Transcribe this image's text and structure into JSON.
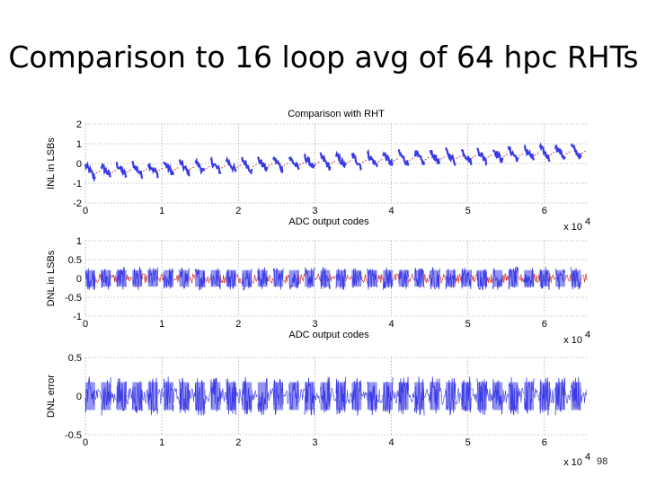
{
  "slide": {
    "title": "Comparison to 16 loop avg of 64 hpc RHTs",
    "page_number": "98"
  },
  "colors": {
    "signal": "#3a3ae6",
    "fill": "#8a8af0",
    "overlay": "#cc2222",
    "grid": "#888888"
  },
  "chart_data": [
    {
      "type": "line",
      "title": "Comparison with RHT",
      "xlabel": "ADC output codes",
      "ylabel": "INL in LSBs",
      "x_multiplier": "x 10",
      "x_multiplier_exp": "4",
      "xlim": [
        0,
        65535
      ],
      "ylim": [
        -2,
        2
      ],
      "xticks": [
        "0",
        "1",
        "2",
        "3",
        "4",
        "5",
        "6"
      ],
      "yticks": [
        "2",
        "1",
        "0",
        "-1",
        "-2"
      ],
      "grid": true,
      "segments": 32,
      "baseline_start": -0.4,
      "baseline_end": 0.6,
      "sawtooth_amplitude": 0.6
    },
    {
      "type": "line",
      "xlabel": "ADC output codes",
      "ylabel": "DNL in LSBs",
      "x_multiplier": "x 10",
      "x_multiplier_exp": "4",
      "xlim": [
        0,
        65535
      ],
      "ylim": [
        -1,
        1
      ],
      "xticks": [
        "0",
        "1",
        "2",
        "3",
        "4",
        "5",
        "6"
      ],
      "yticks": [
        "1",
        "0.5",
        "0",
        "-0.5",
        "-1"
      ],
      "grid": true,
      "segments": 32,
      "band_amplitude": 0.22
    },
    {
      "type": "line",
      "ylabel": "DNL error",
      "x_multiplier": "x 10",
      "x_multiplier_exp": "4",
      "xlim": [
        0,
        65535
      ],
      "ylim": [
        -0.5,
        0.5
      ],
      "xticks": [
        "0",
        "1",
        "2",
        "3",
        "4",
        "5",
        "6"
      ],
      "yticks": [
        "0.5",
        "0",
        "-0.5"
      ],
      "grid": true,
      "segments": 32,
      "band_amplitude": 0.18
    }
  ]
}
